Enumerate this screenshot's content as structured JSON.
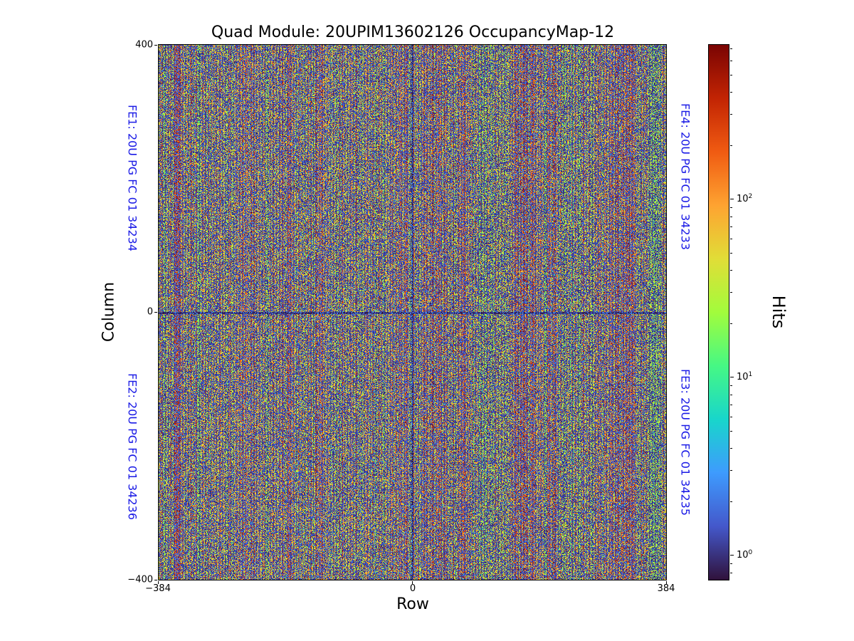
{
  "chart_data": {
    "type": "heatmap",
    "title": "Quad Module: 20UPIM13602126 OccupancyMap-12",
    "xlabel": "Row",
    "ylabel": "Column",
    "x_range": [
      -384,
      384
    ],
    "y_range": [
      -400,
      400
    ],
    "xticks": [
      "−384",
      "0",
      "384"
    ],
    "yticks": [
      "400",
      "0",
      "−400"
    ],
    "grid": false,
    "description": "Per-pixel hit occupancy map of a quad pixel module (4 front-end chips). Dense pseudo-random hit counts form fine vertical column striping over a dark background, with darker guard lines along Row 0 and Column 0 separating the four chip quadrants.",
    "label_color": "#1a1ae6",
    "fe_labels": [
      {
        "id": "fe1",
        "text": "FE1: 20U PG FC 01 34234",
        "side": "left",
        "half": "top"
      },
      {
        "id": "fe2",
        "text": "FE2: 20U PG FC 01 34236",
        "side": "left",
        "half": "bottom"
      },
      {
        "id": "fe4",
        "text": "FE4: 20U PG FC 01 34233",
        "side": "right",
        "half": "top"
      },
      {
        "id": "fe3",
        "text": "FE3: 20U PG FC 01 34235",
        "side": "right",
        "half": "bottom"
      }
    ],
    "colorbar": {
      "label": "Hits",
      "scale": "log",
      "vmin": 0.72,
      "vmax": 740,
      "ticks": [
        {
          "base": "10",
          "exp": "2",
          "value": 100
        },
        {
          "base": "10",
          "exp": "1",
          "value": 10
        },
        {
          "base": "10",
          "exp": "0",
          "value": 1
        }
      ],
      "cmap": "turbo",
      "cmap_stops": [
        [
          0.0,
          "#30123b"
        ],
        [
          0.1,
          "#4458cb"
        ],
        [
          0.2,
          "#3e9bfe"
        ],
        [
          0.3,
          "#18d6cb"
        ],
        [
          0.4,
          "#46f884"
        ],
        [
          0.5,
          "#a2fc3c"
        ],
        [
          0.6,
          "#e1dd37"
        ],
        [
          0.7,
          "#fea331"
        ],
        [
          0.8,
          "#f05b12"
        ],
        [
          0.9,
          "#c22403"
        ],
        [
          1.0,
          "#7a0403"
        ]
      ]
    }
  }
}
